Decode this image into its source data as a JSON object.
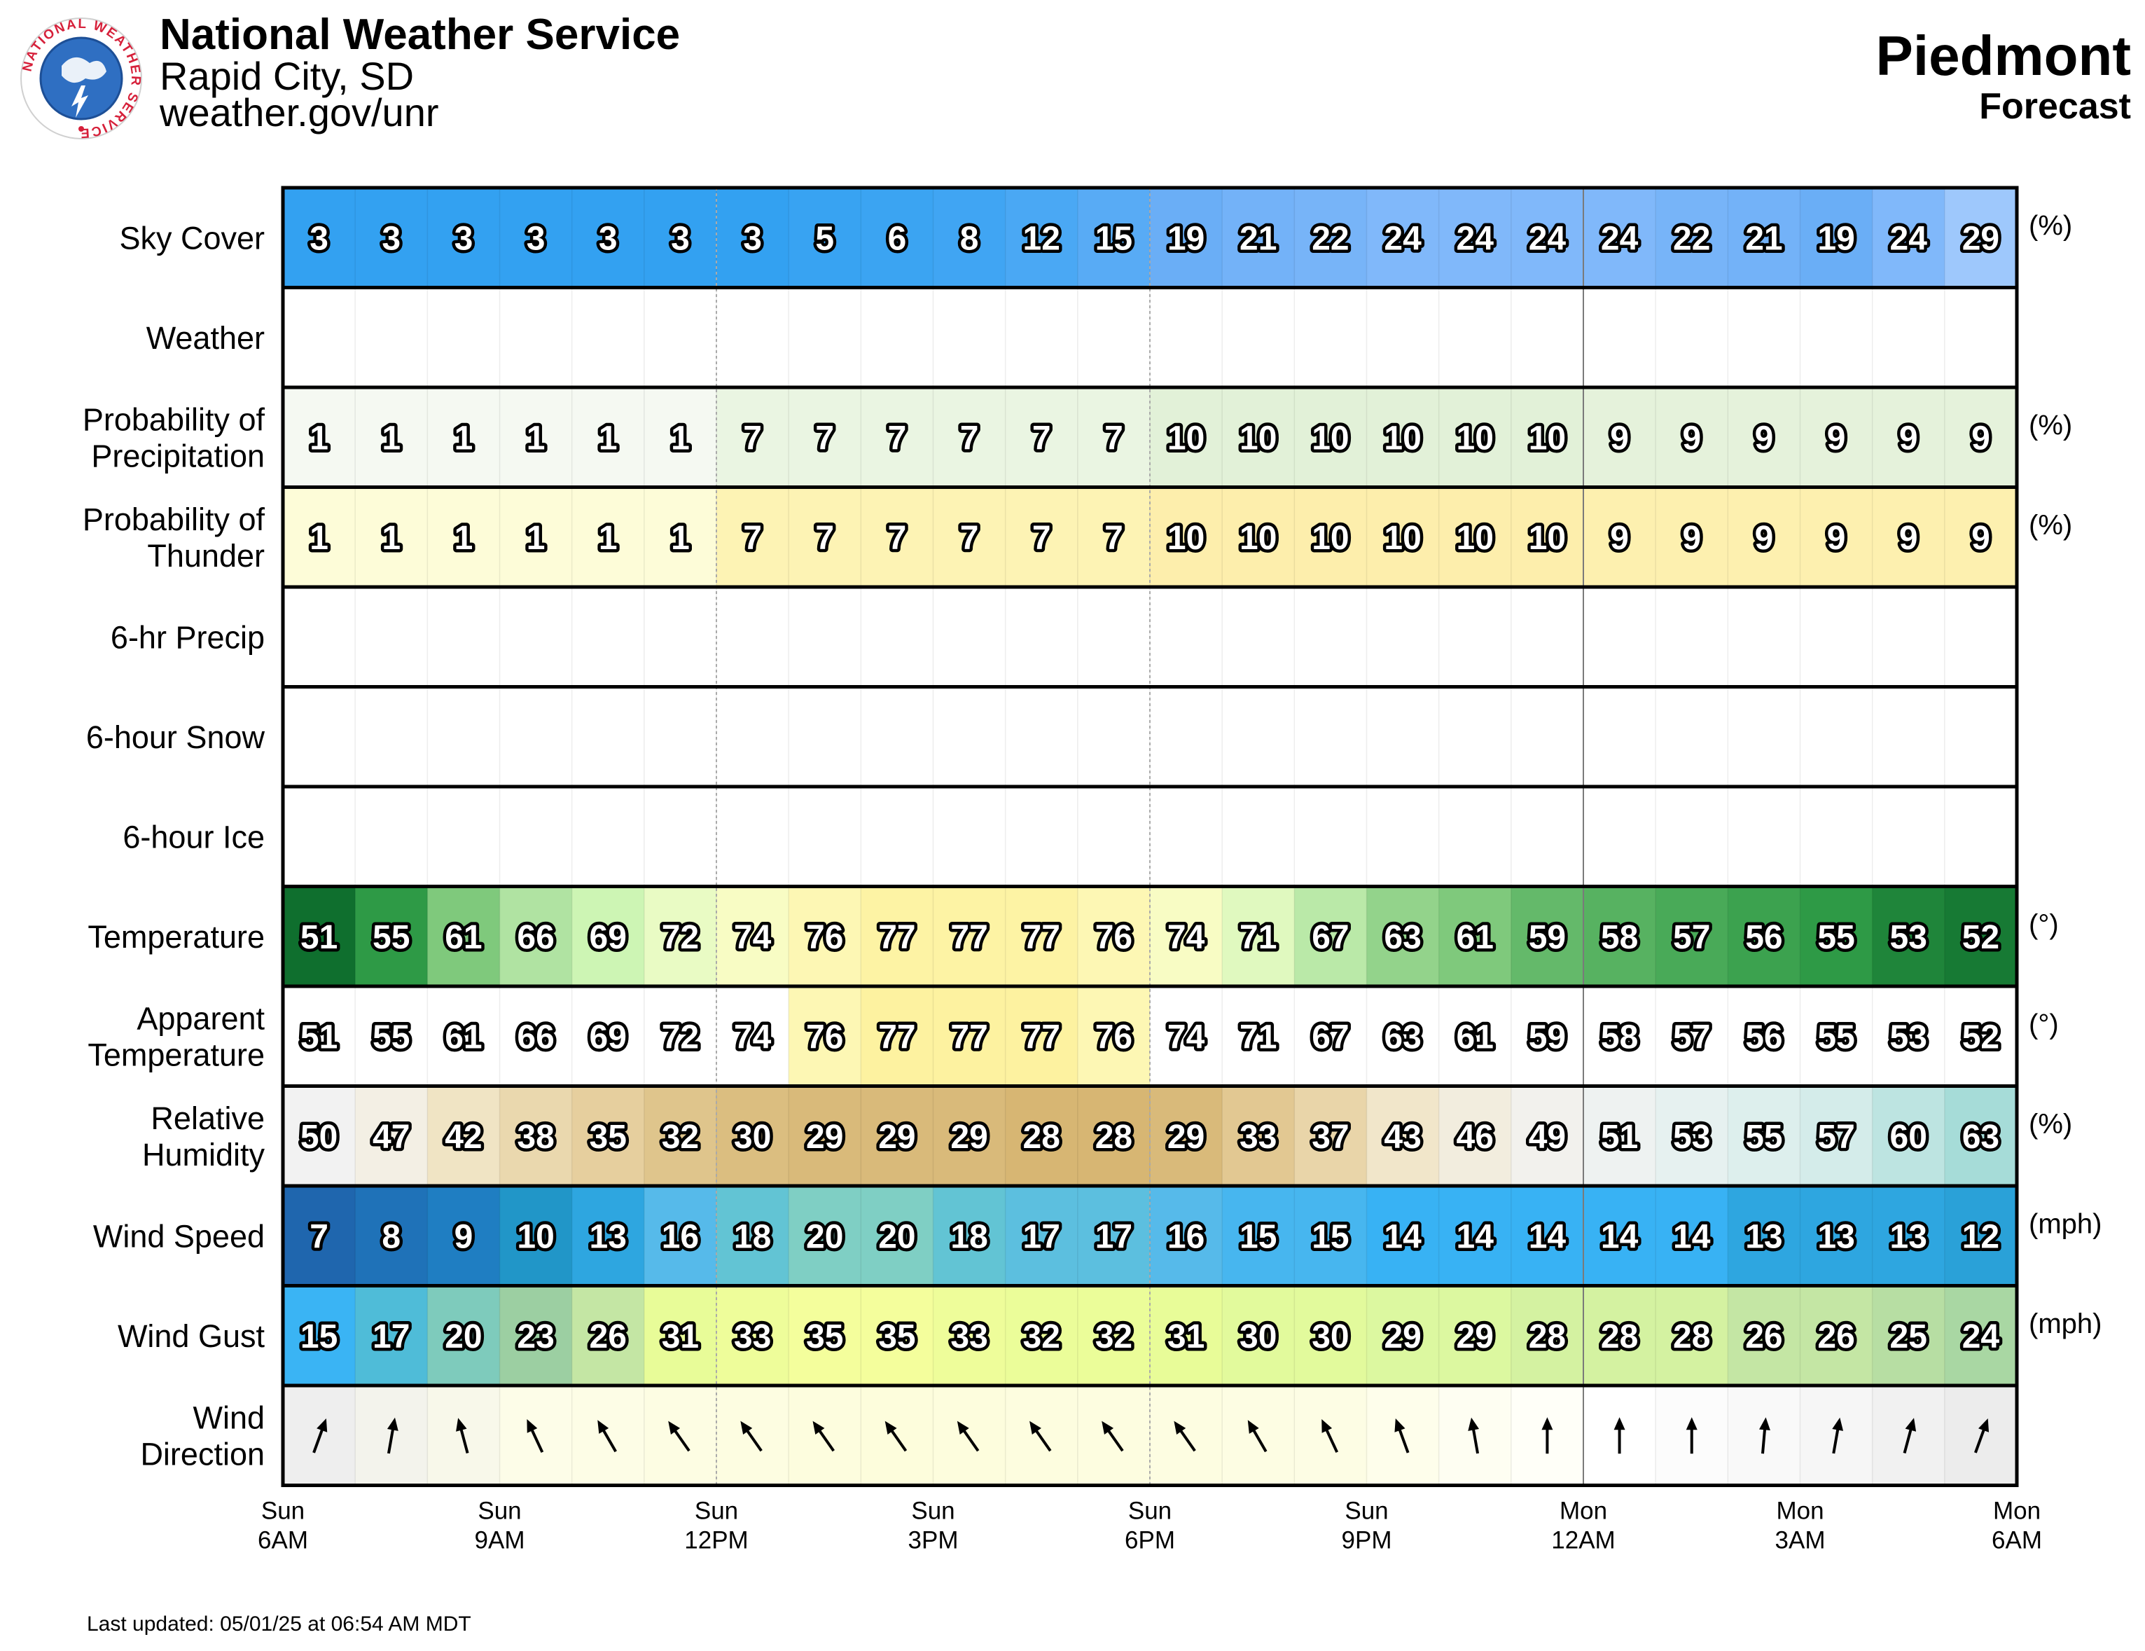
{
  "header": {
    "agency": "National Weather Service",
    "office": "Rapid City, SD",
    "url": "weather.gov/unr",
    "location": "Piedmont",
    "product": "Forecast",
    "logo_text": "NATIONAL WEATHER SERVICE"
  },
  "footer": {
    "last_updated": "Last updated: 05/01/25 at 06:54 AM MDT"
  },
  "chart_data": {
    "type": "table",
    "x_ticks": [
      {
        "day": "Sun",
        "time": "6AM"
      },
      {
        "day": "Sun",
        "time": "9AM"
      },
      {
        "day": "Sun",
        "time": "12PM"
      },
      {
        "day": "Sun",
        "time": "3PM"
      },
      {
        "day": "Sun",
        "time": "6PM"
      },
      {
        "day": "Sun",
        "time": "9PM"
      },
      {
        "day": "Mon",
        "time": "12AM"
      },
      {
        "day": "Mon",
        "time": "3AM"
      },
      {
        "day": "Mon",
        "time": "6AM"
      }
    ],
    "rows": [
      {
        "label": "Sky Cover",
        "unit": "(%)",
        "colormap": "sky",
        "values": [
          3,
          3,
          3,
          3,
          3,
          3,
          3,
          5,
          6,
          8,
          12,
          15,
          19,
          21,
          22,
          24,
          24,
          24,
          24,
          22,
          21,
          19,
          24,
          29
        ]
      },
      {
        "label": "Weather",
        "unit": "",
        "colormap": "none",
        "values": []
      },
      {
        "label": "Probability of Precipitation",
        "unit": "(%)",
        "colormap": "pop",
        "values": [
          1,
          1,
          1,
          1,
          1,
          1,
          7,
          7,
          7,
          7,
          7,
          7,
          10,
          10,
          10,
          10,
          10,
          10,
          9,
          9,
          9,
          9,
          9,
          9
        ]
      },
      {
        "label": "Probability of Thunder",
        "unit": "(%)",
        "colormap": "thunder",
        "values": [
          1,
          1,
          1,
          1,
          1,
          1,
          7,
          7,
          7,
          7,
          7,
          7,
          10,
          10,
          10,
          10,
          10,
          10,
          9,
          9,
          9,
          9,
          9,
          9
        ]
      },
      {
        "label": "6-hr Precip",
        "unit": "",
        "colormap": "none",
        "values": []
      },
      {
        "label": "6-hour Snow",
        "unit": "",
        "colormap": "none",
        "values": []
      },
      {
        "label": "6-hour Ice",
        "unit": "",
        "colormap": "none",
        "values": []
      },
      {
        "label": "Temperature",
        "unit": "(°)",
        "colormap": "temp",
        "values": [
          51,
          55,
          61,
          66,
          69,
          72,
          74,
          76,
          77,
          77,
          77,
          76,
          74,
          71,
          67,
          63,
          61,
          59,
          58,
          57,
          56,
          55,
          53,
          52
        ]
      },
      {
        "label": "Apparent Temperature",
        "unit": "(°)",
        "colormap": "apparent",
        "values": [
          51,
          55,
          61,
          66,
          69,
          72,
          74,
          76,
          77,
          77,
          77,
          76,
          74,
          71,
          67,
          63,
          61,
          59,
          58,
          57,
          56,
          55,
          53,
          52
        ]
      },
      {
        "label": "Relative Humidity",
        "unit": "(%)",
        "colormap": "rh",
        "values": [
          50,
          47,
          42,
          38,
          35,
          32,
          30,
          29,
          29,
          29,
          28,
          28,
          29,
          33,
          37,
          43,
          46,
          49,
          51,
          53,
          55,
          57,
          60,
          63
        ]
      },
      {
        "label": "Wind Speed",
        "unit": "(mph)",
        "colormap": "wind",
        "values": [
          7,
          8,
          9,
          10,
          13,
          16,
          18,
          20,
          20,
          18,
          17,
          17,
          16,
          15,
          15,
          14,
          14,
          14,
          14,
          14,
          13,
          13,
          13,
          12
        ]
      },
      {
        "label": "Wind Gust",
        "unit": "(mph)",
        "colormap": "gust",
        "values": [
          15,
          17,
          20,
          23,
          26,
          31,
          33,
          35,
          35,
          33,
          32,
          32,
          31,
          30,
          30,
          29,
          29,
          28,
          28,
          28,
          26,
          26,
          25,
          24
        ]
      },
      {
        "label": "Wind Direction",
        "unit": "",
        "colormap": "wdir",
        "values_deg": [
          200,
          190,
          165,
          155,
          150,
          145,
          145,
          145,
          145,
          145,
          145,
          145,
          145,
          150,
          155,
          160,
          170,
          180,
          180,
          180,
          185,
          190,
          195,
          200
        ]
      }
    ]
  }
}
